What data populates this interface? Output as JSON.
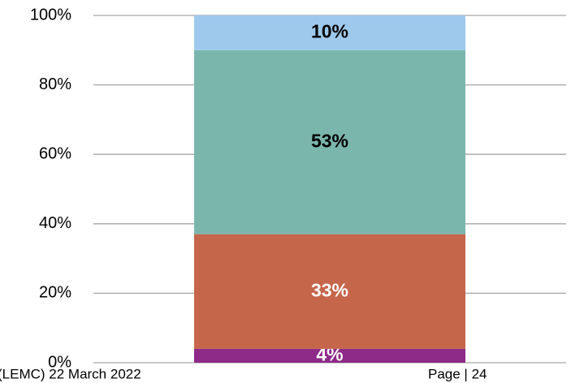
{
  "chart_data": {
    "type": "stacked_bar",
    "categories": [
      null
    ],
    "series": [
      {
        "color": "#8e2a88",
        "label_color": "#ffffff",
        "values": [
          4
        ],
        "value_labels": [
          "4%"
        ]
      },
      {
        "color": "#c5654a",
        "label_color": "#ffffff",
        "values": [
          33
        ],
        "value_labels": [
          "33%"
        ]
      },
      {
        "color": "#7bb6ad",
        "label_color": "#000000",
        "values": [
          53
        ],
        "value_labels": [
          "53%"
        ]
      },
      {
        "color": "#9ec9ec",
        "label_color": "#000000",
        "values": [
          10
        ],
        "value_labels": [
          "10%"
        ]
      }
    ],
    "ylim": [
      0,
      100
    ],
    "yticks": [
      {
        "value": 0,
        "label": "0%"
      },
      {
        "value": 20,
        "label": "20%"
      },
      {
        "value": 40,
        "label": "40%"
      },
      {
        "value": 60,
        "label": "60%"
      },
      {
        "value": 80,
        "label": "80%"
      },
      {
        "value": 100,
        "label": "100%"
      }
    ],
    "grid": true
  },
  "footer": {
    "left": "(LEMC) 22 March 2022",
    "right": "Page | 24"
  }
}
